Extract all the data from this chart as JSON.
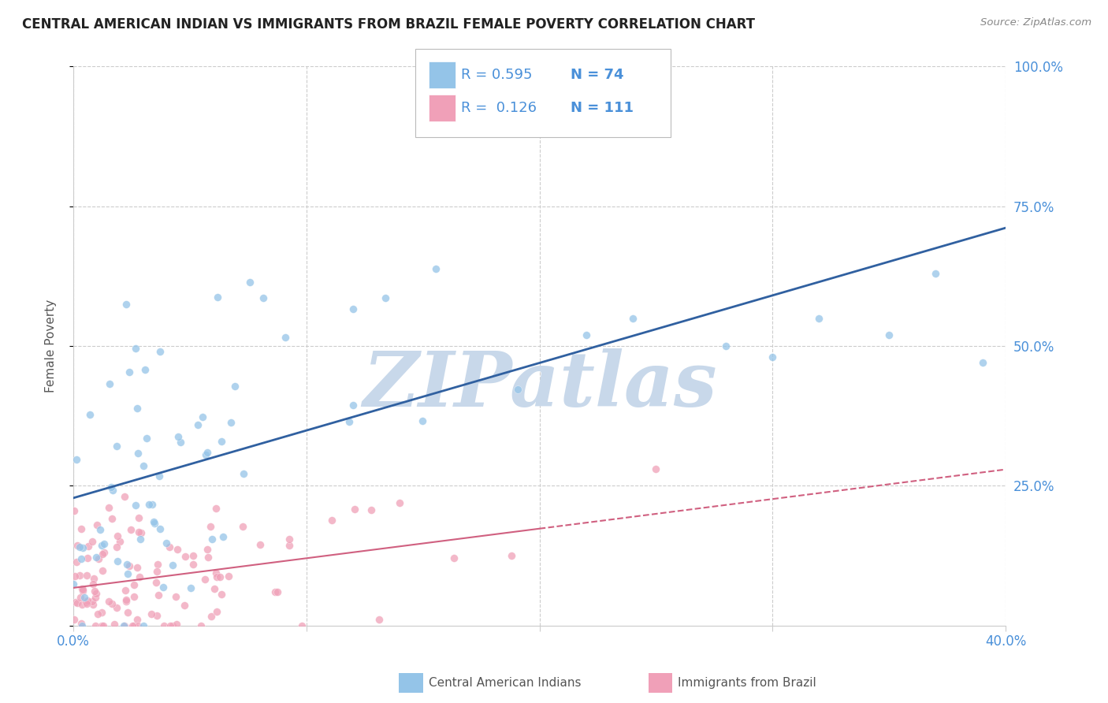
{
  "title": "CENTRAL AMERICAN INDIAN VS IMMIGRANTS FROM BRAZIL FEMALE POVERTY CORRELATION CHART",
  "source": "Source: ZipAtlas.com",
  "ylabel": "Female Poverty",
  "y_ticks": [
    0,
    25,
    50,
    75,
    100
  ],
  "y_tick_labels": [
    "",
    "25.0%",
    "50.0%",
    "75.0%",
    "100.0%"
  ],
  "xmin": 0.0,
  "xmax": 40.0,
  "ymin": 0.0,
  "ymax": 100.0,
  "series1_label": "Central American Indians",
  "series1_R": 0.595,
  "series1_N": 74,
  "series1_color": "#94C4E8",
  "series1_line_color": "#3060A0",
  "series2_label": "Immigrants from Brazil",
  "series2_R": 0.126,
  "series2_N": 111,
  "series2_color": "#F0A0B8",
  "series2_line_color": "#D06080",
  "watermark": "ZIPatlas",
  "watermark_color": "#C8D8EA",
  "background_color": "#FFFFFF",
  "grid_color": "#CCCCCC",
  "title_color": "#222222",
  "title_fontsize": 12,
  "axis_label_color": "#555555",
  "tick_label_color": "#4A90D9",
  "source_color": "#888888",
  "legend_R_color": "#4A90D9",
  "seed1": 7,
  "seed2": 99
}
